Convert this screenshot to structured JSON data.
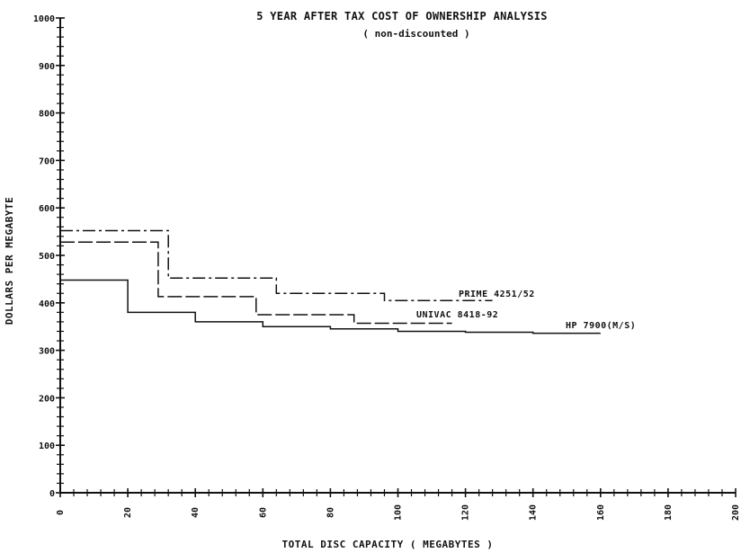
{
  "chart_data": {
    "type": "line",
    "step": true,
    "title": "5 YEAR AFTER TAX COST OF OWNERSHIP ANALYSIS",
    "subtitle": "( non-discounted )",
    "xlabel": "TOTAL DISC CAPACITY ( MEGABYTES )",
    "ylabel": "DOLLARS PER MEGABYTE",
    "xlim": [
      0,
      200
    ],
    "ylim": [
      0,
      1000
    ],
    "x_ticks": [
      "0",
      "20",
      "40",
      "60",
      "80",
      "100",
      "120",
      "140",
      "160",
      "180",
      "200"
    ],
    "y_ticks": [
      "0",
      "100",
      "200",
      "300",
      "400",
      "500",
      "600",
      "700",
      "800",
      "900",
      "1000"
    ],
    "grid": false,
    "legend": "inline labels at line ends",
    "series": [
      {
        "name": "PRIME 4251/52",
        "style": "dash-dot",
        "x": [
          0,
          32,
          32,
          64,
          64,
          96,
          96,
          128
        ],
        "y": [
          552,
          552,
          452,
          452,
          420,
          420,
          405,
          405
        ]
      },
      {
        "name": "UNIVAC 8418-92",
        "style": "long-dash",
        "x": [
          0,
          29,
          29,
          58,
          58,
          87,
          87,
          116
        ],
        "y": [
          528,
          528,
          413,
          413,
          375,
          375,
          357,
          357
        ]
      },
      {
        "name": "HP 7900(M/S)",
        "style": "solid",
        "x": [
          0,
          20,
          20,
          40,
          40,
          60,
          60,
          80,
          80,
          100,
          100,
          120,
          120,
          140,
          140,
          160
        ],
        "y": [
          448,
          448,
          380,
          380,
          360,
          360,
          350,
          350,
          345,
          345,
          340,
          340,
          338,
          338,
          336,
          336
        ]
      }
    ]
  }
}
